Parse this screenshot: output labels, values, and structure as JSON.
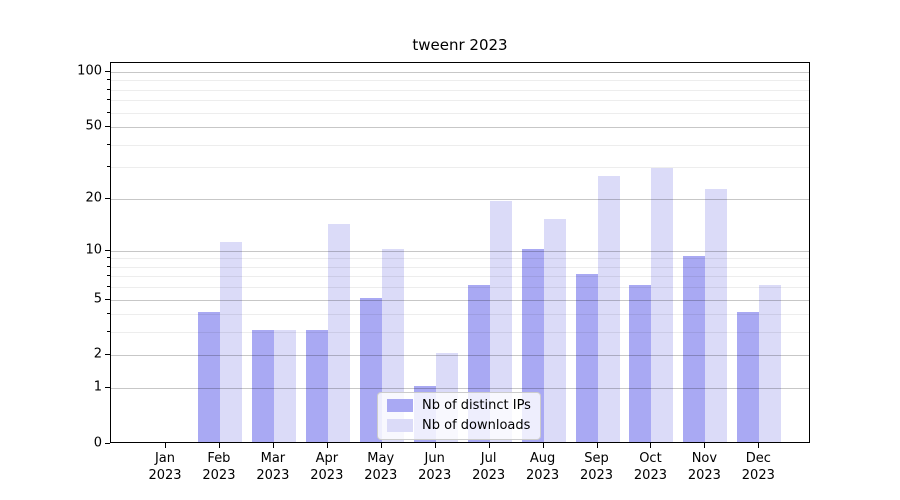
{
  "figure": {
    "title": "tweenr 2023",
    "background": "#ffffff"
  },
  "chart_data": {
    "type": "bar",
    "title": "tweenr 2023",
    "categories": [
      "Jan 2023",
      "Feb 2023",
      "Mar 2023",
      "Apr 2023",
      "May 2023",
      "Jun 2023",
      "Jul 2023",
      "Aug 2023",
      "Sep 2023",
      "Oct 2023",
      "Nov 2023",
      "Dec 2023"
    ],
    "series": [
      {
        "name": "Nb of distinct IPs",
        "color": "#a9a9f3",
        "values": [
          0,
          4,
          3,
          3,
          5,
          1,
          6,
          10,
          7,
          6,
          9,
          4
        ]
      },
      {
        "name": "Nb of downloads",
        "color": "#dbdbf8",
        "values": [
          0,
          11,
          3,
          14,
          10,
          2,
          19,
          15,
          26,
          29,
          22,
          6
        ]
      }
    ],
    "xlabel": "",
    "ylabel": "",
    "yscale": "log1p",
    "y_major_ticks": [
      0,
      1,
      2,
      5,
      10,
      20,
      50,
      100
    ],
    "y_minor_ticks": [
      3,
      4,
      6,
      7,
      8,
      9,
      30,
      40,
      60,
      70,
      80,
      90
    ],
    "ylim": [
      0,
      112
    ],
    "grid": "on",
    "legend_position": "lower center"
  },
  "legend": {
    "items": [
      {
        "label": "Nb of distinct IPs",
        "color": "#a9a9f3"
      },
      {
        "label": "Nb of downloads",
        "color": "#dbdbf8"
      }
    ]
  },
  "colors": {
    "bar_ips": "#a9a9f3",
    "bar_downloads": "#dbdbf8",
    "grid_major": "rgba(0,0,0,0.22)",
    "grid_minor": "rgba(0,0,0,0.07)",
    "axis": "#000000",
    "legend_border": "#cccccc",
    "legend_bg": "rgba(255,255,255,0.8)"
  }
}
